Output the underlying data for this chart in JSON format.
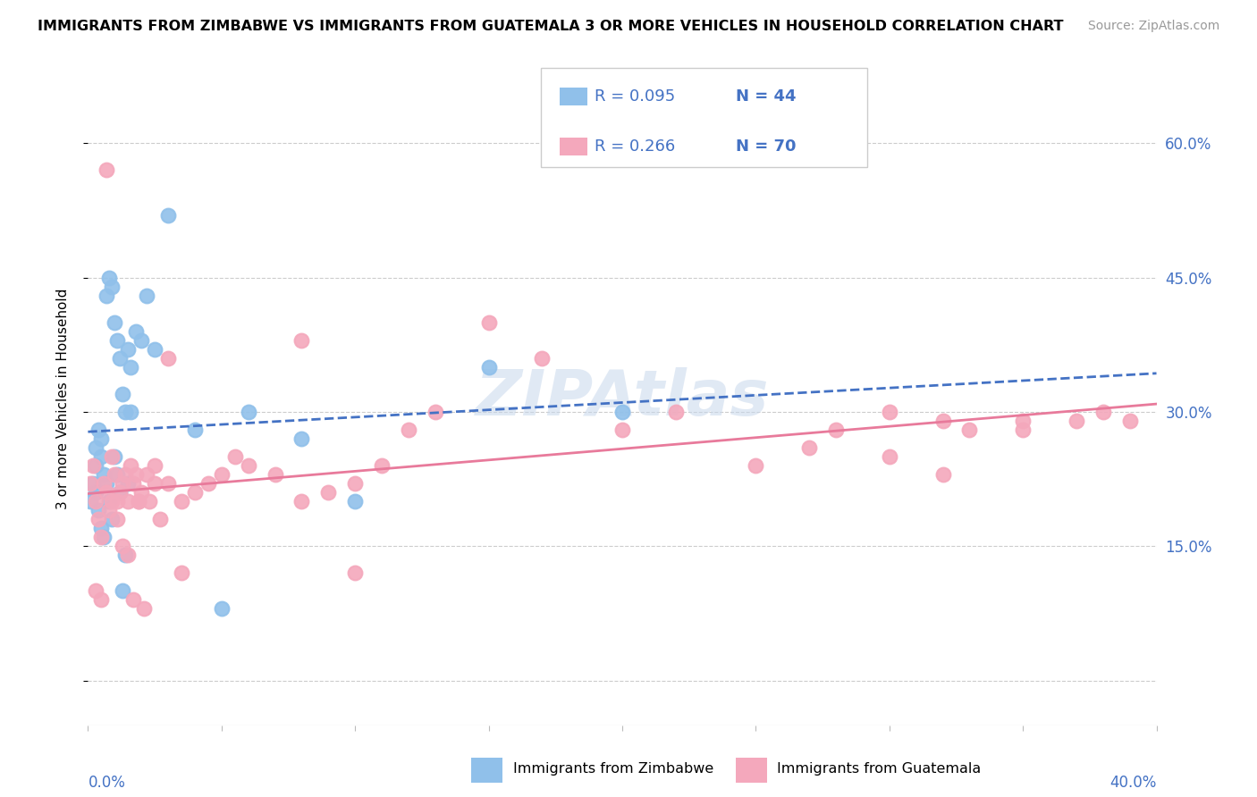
{
  "title": "IMMIGRANTS FROM ZIMBABWE VS IMMIGRANTS FROM GUATEMALA 3 OR MORE VEHICLES IN HOUSEHOLD CORRELATION CHART",
  "source": "Source: ZipAtlas.com",
  "ylabel_label": "3 or more Vehicles in Household",
  "yticks": [
    0.0,
    0.15,
    0.3,
    0.45,
    0.6
  ],
  "ytick_labels": [
    "",
    "15.0%",
    "30.0%",
    "45.0%",
    "60.0%"
  ],
  "xlim": [
    0.0,
    0.4
  ],
  "ylim": [
    -0.05,
    0.68
  ],
  "zimbabwe_color": "#90C0EA",
  "guatemala_color": "#F4A8BC",
  "zimbabwe_line_color": "#4472C4",
  "guatemala_line_color": "#E87A9B",
  "zimbabwe_R": 0.095,
  "zimbabwe_N": 44,
  "guatemala_R": 0.266,
  "guatemala_N": 70,
  "zimbabwe_x": [
    0.001,
    0.002,
    0.003,
    0.003,
    0.004,
    0.005,
    0.005,
    0.006,
    0.007,
    0.008,
    0.009,
    0.01,
    0.011,
    0.012,
    0.013,
    0.014,
    0.015,
    0.016,
    0.018,
    0.02,
    0.022,
    0.025,
    0.03,
    0.04,
    0.05,
    0.06,
    0.08,
    0.1,
    0.15,
    0.2,
    0.003,
    0.004,
    0.005,
    0.006,
    0.007,
    0.008,
    0.009,
    0.01,
    0.011,
    0.012,
    0.013,
    0.014,
    0.015,
    0.016
  ],
  "zimbabwe_y": [
    0.2,
    0.22,
    0.24,
    0.26,
    0.28,
    0.25,
    0.27,
    0.23,
    0.43,
    0.45,
    0.44,
    0.4,
    0.38,
    0.36,
    0.32,
    0.3,
    0.37,
    0.35,
    0.39,
    0.38,
    0.43,
    0.37,
    0.52,
    0.28,
    0.08,
    0.3,
    0.27,
    0.2,
    0.35,
    0.3,
    0.21,
    0.19,
    0.17,
    0.16,
    0.22,
    0.2,
    0.18,
    0.25,
    0.23,
    0.21,
    0.1,
    0.14,
    0.22,
    0.3
  ],
  "guatemala_x": [
    0.001,
    0.002,
    0.003,
    0.004,
    0.005,
    0.006,
    0.007,
    0.008,
    0.009,
    0.01,
    0.011,
    0.012,
    0.013,
    0.014,
    0.015,
    0.016,
    0.017,
    0.018,
    0.019,
    0.02,
    0.022,
    0.025,
    0.03,
    0.035,
    0.04,
    0.045,
    0.05,
    0.055,
    0.06,
    0.07,
    0.08,
    0.09,
    0.1,
    0.11,
    0.12,
    0.13,
    0.15,
    0.17,
    0.2,
    0.22,
    0.25,
    0.27,
    0.28,
    0.3,
    0.32,
    0.33,
    0.35,
    0.37,
    0.38,
    0.39,
    0.003,
    0.005,
    0.007,
    0.009,
    0.011,
    0.013,
    0.015,
    0.017,
    0.019,
    0.021,
    0.023,
    0.025,
    0.027,
    0.03,
    0.035,
    0.08,
    0.1,
    0.3,
    0.32,
    0.35
  ],
  "guatemala_y": [
    0.22,
    0.24,
    0.2,
    0.18,
    0.16,
    0.22,
    0.21,
    0.19,
    0.25,
    0.23,
    0.2,
    0.21,
    0.22,
    0.23,
    0.2,
    0.24,
    0.22,
    0.23,
    0.2,
    0.21,
    0.23,
    0.24,
    0.22,
    0.2,
    0.21,
    0.22,
    0.23,
    0.25,
    0.24,
    0.23,
    0.2,
    0.21,
    0.22,
    0.24,
    0.28,
    0.3,
    0.4,
    0.36,
    0.28,
    0.3,
    0.24,
    0.26,
    0.28,
    0.25,
    0.23,
    0.28,
    0.29,
    0.29,
    0.3,
    0.29,
    0.1,
    0.09,
    0.57,
    0.2,
    0.18,
    0.15,
    0.14,
    0.09,
    0.2,
    0.08,
    0.2,
    0.22,
    0.18,
    0.36,
    0.12,
    0.38,
    0.12,
    0.3,
    0.29,
    0.28
  ]
}
